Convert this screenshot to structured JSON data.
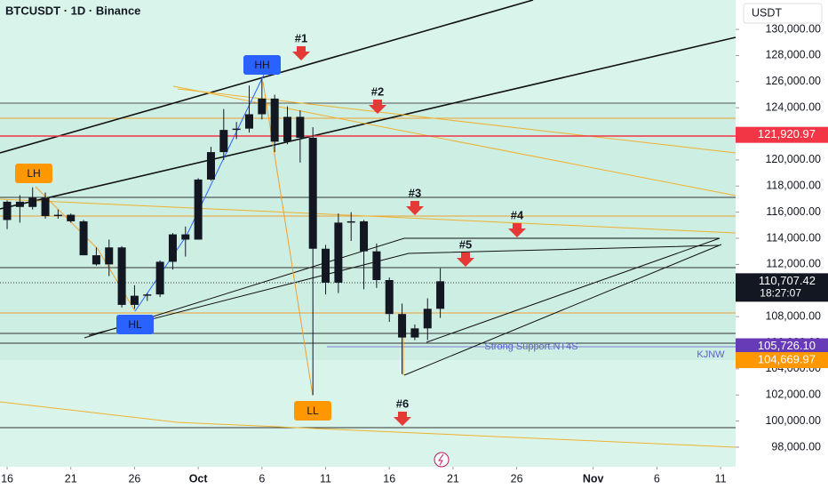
{
  "chart_data": {
    "type": "candlestick",
    "title": "BTCUSDT · 1D · Binance",
    "currency": "USDT",
    "x": [
      0,
      1,
      2,
      3,
      4,
      5,
      6,
      7,
      8,
      9,
      10,
      11,
      12,
      13,
      14,
      15,
      16,
      17,
      18,
      19,
      20,
      21,
      22,
      23,
      24,
      25,
      26,
      27,
      28,
      29,
      30,
      31,
      32,
      33,
      34
    ],
    "open": [
      115400,
      116800,
      116400,
      117100,
      115700,
      115800,
      115300,
      112700,
      112000,
      113300,
      108900,
      109600,
      109700,
      112200,
      114300,
      113900,
      118500,
      120600,
      122300,
      122400,
      123500,
      124700,
      121400,
      123300,
      121700,
      113200,
      110600,
      115200,
      115300,
      113000,
      110800,
      108200,
      106400,
      107100,
      108600
    ],
    "high": [
      116900,
      117300,
      117900,
      117500,
      116200,
      115900,
      115400,
      113300,
      113900,
      113400,
      110400,
      109800,
      112300,
      114400,
      114900,
      118600,
      121000,
      123900,
      122900,
      125700,
      126200,
      125000,
      124100,
      123800,
      122500,
      113500,
      115900,
      116000,
      115400,
      113600,
      111000,
      109000,
      107400,
      109400,
      111700
    ],
    "low": [
      114700,
      115200,
      116200,
      115500,
      115500,
      115200,
      112700,
      111900,
      111100,
      108700,
      108600,
      109200,
      109500,
      111600,
      112600,
      113900,
      118400,
      120000,
      121600,
      122100,
      123100,
      120600,
      121200,
      119800,
      102000,
      109700,
      109800,
      113800,
      110100,
      110200,
      107600,
      103600,
      106200,
      106200,
      107900
    ],
    "close": [
      116800,
      116400,
      117100,
      115700,
      115800,
      115300,
      112700,
      112000,
      113300,
      108900,
      109600,
      109700,
      112200,
      114300,
      113900,
      118500,
      120600,
      122300,
      122400,
      123500,
      124700,
      121400,
      123300,
      121700,
      113200,
      110600,
      115200,
      115300,
      113000,
      110800,
      108200,
      106400,
      107100,
      108600,
      110707.42
    ],
    "color": "#131722",
    "xlim": [
      -0.56,
      57.18
    ],
    "xticks": [
      {
        "value": 0,
        "label": "16"
      },
      {
        "value": 5,
        "label": "21"
      },
      {
        "value": 10,
        "label": "26"
      },
      {
        "value": 15,
        "label": "Oct"
      },
      {
        "value": 20,
        "label": "6"
      },
      {
        "value": 25,
        "label": "11"
      },
      {
        "value": 30,
        "label": "16"
      },
      {
        "value": 35,
        "label": "21"
      },
      {
        "value": 40,
        "label": "26"
      },
      {
        "value": 46,
        "label": "Nov"
      },
      {
        "value": 51,
        "label": "6"
      },
      {
        "value": 56,
        "label": "11"
      }
    ],
    "ylim": [
      96500,
      132250
    ],
    "yticks": [
      {
        "value": 98000,
        "label": "98,000.00"
      },
      {
        "value": 100000,
        "label": "100,000.00"
      },
      {
        "value": 102000,
        "label": "102,000.00"
      },
      {
        "value": 104000,
        "label": "104,000.00"
      },
      {
        "value": 106000,
        "label": "106,000.00"
      },
      {
        "value": 108000,
        "label": "108,000.00"
      },
      {
        "value": 110000,
        "label": "110,000.00"
      },
      {
        "value": 112000,
        "label": "112,000.00"
      },
      {
        "value": 114000,
        "label": "114,000.00"
      },
      {
        "value": 116000,
        "label": "116,000.00"
      },
      {
        "value": 118000,
        "label": "118,000.00"
      },
      {
        "value": 120000,
        "label": "120,000.00"
      },
      {
        "value": 122000,
        "label": "122,000.00"
      },
      {
        "value": 124000,
        "label": "124,000.00"
      },
      {
        "value": 126000,
        "label": "126,000.00"
      },
      {
        "value": 128000,
        "label": "128,000.00"
      },
      {
        "value": 130000,
        "label": "130,000.00"
      }
    ],
    "price_labels": [
      {
        "value": 121920.97,
        "label": "121,920.97",
        "color": "#f23645"
      },
      {
        "value": 110707.42,
        "label": "110,707.42",
        "color": "#131722",
        "countdown": "18:27:07"
      },
      {
        "value": 105726.1,
        "label": "105,726.10",
        "color": "#673ab7"
      },
      {
        "value": 104669.97,
        "label": "104,669.97",
        "color": "#ff9800"
      }
    ],
    "annotations": [
      "#1",
      "#2",
      "#3",
      "#4",
      "#5",
      "#6",
      "HH",
      "LH",
      "HL",
      "LL",
      "Strong Support.NT4S",
      "KJNW"
    ]
  }
}
